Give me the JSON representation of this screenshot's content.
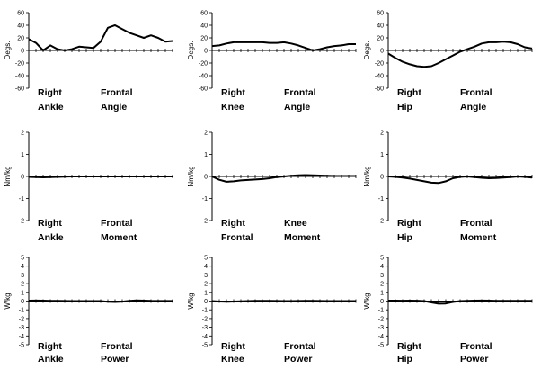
{
  "chart_data": [
    {
      "type": "line",
      "ylabel": "Degs.",
      "ylim": [
        -60,
        60
      ],
      "yticks": [
        "60",
        "40",
        "20",
        "0",
        "-20",
        "-40",
        "-60"
      ],
      "caption": [
        "Right",
        "Frontal",
        "Ankle",
        "Angle"
      ],
      "x": [
        0,
        5,
        10,
        15,
        20,
        25,
        30,
        35,
        40,
        45,
        50,
        55,
        60,
        65,
        70,
        75,
        80,
        85,
        90,
        95,
        100
      ],
      "y": [
        18,
        12,
        0,
        8,
        2,
        0,
        2,
        6,
        5,
        4,
        14,
        36,
        40,
        34,
        28,
        24,
        20,
        24,
        20,
        14,
        15
      ]
    },
    {
      "type": "line",
      "ylabel": "Degs.",
      "ylim": [
        -60,
        60
      ],
      "yticks": [
        "60",
        "40",
        "20",
        "0",
        "-20",
        "-40",
        "-60"
      ],
      "caption": [
        "Right",
        "Frontal",
        "Knee",
        "Angle"
      ],
      "x": [
        0,
        5,
        10,
        15,
        20,
        25,
        30,
        35,
        40,
        45,
        50,
        55,
        60,
        65,
        70,
        75,
        80,
        85,
        90,
        95,
        100
      ],
      "y": [
        7,
        8,
        11,
        13,
        13,
        13,
        13,
        13,
        12,
        12,
        13,
        11,
        8,
        4,
        0,
        2,
        5,
        7,
        8,
        10,
        10
      ]
    },
    {
      "type": "line",
      "ylabel": "Degs.",
      "ylim": [
        -60,
        60
      ],
      "yticks": [
        "60",
        "40",
        "20",
        "0",
        "-20",
        "-40",
        "-60"
      ],
      "caption": [
        "Right",
        "Frontal",
        "Hip",
        "Angle"
      ],
      "x": [
        0,
        5,
        10,
        15,
        20,
        25,
        30,
        35,
        40,
        45,
        50,
        55,
        60,
        65,
        70,
        75,
        80,
        85,
        90,
        95,
        100
      ],
      "y": [
        -5,
        -12,
        -18,
        -22,
        -25,
        -26,
        -25,
        -20,
        -14,
        -8,
        -2,
        2,
        6,
        11,
        13,
        13,
        14,
        13,
        10,
        5,
        3
      ]
    },
    {
      "type": "line",
      "ylabel": "Nm/kg",
      "ylim": [
        -2,
        2
      ],
      "yticks": [
        "2",
        "1",
        "0",
        "-1",
        "-2"
      ],
      "caption": [
        "Right",
        "Frontal",
        "Ankle",
        "Moment"
      ],
      "x": [
        0,
        5,
        10,
        15,
        20,
        25,
        30,
        35,
        40,
        45,
        50,
        55,
        60,
        65,
        70,
        75,
        80,
        85,
        90,
        95,
        100
      ],
      "y": [
        -0.02,
        -0.03,
        -0.04,
        -0.03,
        -0.02,
        -0.01,
        0,
        0,
        0,
        0,
        0,
        0,
        0,
        0,
        0,
        0,
        0,
        0,
        0,
        0,
        0
      ]
    },
    {
      "type": "line",
      "ylabel": "Nm/kg",
      "ylim": [
        -2,
        2
      ],
      "yticks": [
        "2",
        "1",
        "0",
        "-1",
        "-2"
      ],
      "caption": [
        "Right",
        "Knee",
        "Frontal",
        "Moment"
      ],
      "x": [
        0,
        5,
        10,
        15,
        20,
        25,
        30,
        35,
        40,
        45,
        50,
        55,
        60,
        65,
        70,
        75,
        80,
        85,
        90,
        95,
        100
      ],
      "y": [
        0,
        -0.15,
        -0.24,
        -0.22,
        -0.18,
        -0.16,
        -0.14,
        -0.12,
        -0.08,
        -0.03,
        0,
        0.03,
        0.05,
        0.06,
        0.05,
        0.04,
        0.03,
        0.02,
        0.02,
        0.02,
        0.02
      ]
    },
    {
      "type": "line",
      "ylabel": "Nm/kg",
      "ylim": [
        -2,
        2
      ],
      "yticks": [
        "2",
        "1",
        "0",
        "-1",
        "-2"
      ],
      "caption": [
        "Right",
        "Frontal",
        "Hip",
        "Moment"
      ],
      "x": [
        0,
        5,
        10,
        15,
        20,
        25,
        30,
        35,
        40,
        45,
        50,
        55,
        60,
        65,
        70,
        75,
        80,
        85,
        90,
        95,
        100
      ],
      "y": [
        0,
        -0.02,
        -0.05,
        -0.1,
        -0.16,
        -0.22,
        -0.28,
        -0.3,
        -0.22,
        -0.08,
        -0.02,
        0,
        -0.03,
        -0.06,
        -0.08,
        -0.07,
        -0.05,
        -0.03,
        0,
        -0.02,
        -0.05
      ]
    },
    {
      "type": "line",
      "ylabel": "W/kg",
      "ylim": [
        -5,
        5
      ],
      "yticks": [
        "5",
        "4",
        "3",
        "2",
        "1",
        "0",
        "-1",
        "-2",
        "-3",
        "-4",
        "-5"
      ],
      "caption": [
        "Right",
        "Frontal",
        "Ankle",
        "Power"
      ],
      "x": [
        0,
        5,
        10,
        15,
        20,
        25,
        30,
        35,
        40,
        45,
        50,
        55,
        60,
        65,
        70,
        75,
        80,
        85,
        90,
        95,
        100
      ],
      "y": [
        0.05,
        0.06,
        0.05,
        0.03,
        0.02,
        0.01,
        0,
        0,
        0,
        0,
        0,
        -0.08,
        -0.1,
        -0.06,
        0.02,
        0.08,
        0.05,
        0.02,
        0.01,
        0.01,
        0.01
      ]
    },
    {
      "type": "line",
      "ylabel": "W/kg",
      "ylim": [
        -5,
        5
      ],
      "yticks": [
        "5",
        "4",
        "3",
        "2",
        "1",
        "0",
        "-1",
        "-2",
        "-3",
        "-4",
        "-5"
      ],
      "caption": [
        "Right",
        "Frontal",
        "Knee",
        "Power"
      ],
      "x": [
        0,
        5,
        10,
        15,
        20,
        25,
        30,
        35,
        40,
        45,
        50,
        55,
        60,
        65,
        70,
        75,
        80,
        85,
        90,
        95,
        100
      ],
      "y": [
        0,
        -0.05,
        -0.08,
        -0.05,
        -0.02,
        0,
        0.02,
        0.03,
        0.02,
        0.01,
        0,
        0,
        0.01,
        0.02,
        0.02,
        0.01,
        0,
        0,
        0,
        0,
        0
      ]
    },
    {
      "type": "line",
      "ylabel": "W/kg",
      "ylim": [
        -5,
        5
      ],
      "yticks": [
        "5",
        "4",
        "3",
        "2",
        "1",
        "0",
        "-1",
        "-2",
        "-3",
        "-4",
        "-5"
      ],
      "caption": [
        "Right",
        "Frontal",
        "Hip",
        "Power"
      ],
      "x": [
        0,
        5,
        10,
        15,
        20,
        25,
        30,
        35,
        40,
        45,
        50,
        55,
        60,
        65,
        70,
        75,
        80,
        85,
        90,
        95,
        100
      ],
      "y": [
        0.05,
        0.05,
        0.04,
        0.05,
        0.04,
        0,
        -0.15,
        -0.3,
        -0.28,
        -0.1,
        0,
        0.02,
        0.05,
        0.06,
        0.05,
        0.03,
        0.02,
        0.02,
        0.02,
        0.02,
        0.02
      ]
    }
  ]
}
